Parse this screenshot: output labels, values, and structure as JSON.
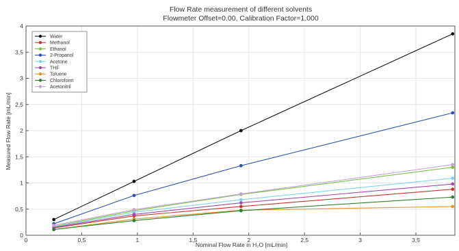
{
  "chart_data": {
    "type": "line",
    "title": "Flow Rate measurement of different solvents",
    "subtitle": "Flowmeter Offset=0.00, Calibration Factor=1.000",
    "xlabel": "Nominal Flow Rate in H₂O [mL/min]",
    "ylabel": "Measured Flow Rate [mL/min]",
    "xlim": [
      0,
      3.85
    ],
    "ylim": [
      0,
      4
    ],
    "x_ticks": [
      0,
      0.5,
      1,
      1.5,
      2,
      2.5,
      3,
      3.5
    ],
    "x_tick_labels": [
      "0",
      "0,5",
      "1",
      "1,5",
      "2",
      "2,5",
      "3",
      "3,5"
    ],
    "y_ticks": [
      0,
      0.5,
      1,
      1.5,
      2,
      2.5,
      3,
      3.5,
      4
    ],
    "y_tick_labels": [
      "0",
      "0,5",
      "1",
      "1,5",
      "2",
      "2,5",
      "3",
      "3,5",
      "4"
    ],
    "grid": true,
    "legend_position": "top-left",
    "x": [
      0.25,
      0.97,
      1.93,
      3.83
    ],
    "series": [
      {
        "name": "Water",
        "color": "#111111",
        "values": [
          0.3,
          1.03,
          2.0,
          3.85
        ]
      },
      {
        "name": "Methanol",
        "color": "#c0392b",
        "values": [
          0.14,
          0.37,
          0.55,
          0.88
        ]
      },
      {
        "name": "Ethanol",
        "color": "#7ac143",
        "values": [
          0.17,
          0.47,
          0.78,
          1.3
        ]
      },
      {
        "name": "2-Propanol",
        "color": "#2c4fb5",
        "values": [
          0.22,
          0.76,
          1.33,
          2.34
        ]
      },
      {
        "name": "Acetone",
        "color": "#7fd3e8",
        "values": [
          0.16,
          0.44,
          0.68,
          1.09
        ]
      },
      {
        "name": "THF",
        "color": "#a24aa8",
        "values": [
          0.15,
          0.4,
          0.62,
          0.98
        ]
      },
      {
        "name": "Toluene",
        "color": "#e8922a",
        "values": [
          0.11,
          0.31,
          0.48,
          0.55
        ]
      },
      {
        "name": "Chloroform",
        "color": "#2e7d32",
        "values": [
          0.11,
          0.28,
          0.47,
          0.73
        ]
      },
      {
        "name": "Acetonitril",
        "color": "#c7a2d6",
        "values": [
          0.19,
          0.49,
          0.79,
          1.35
        ]
      }
    ]
  }
}
